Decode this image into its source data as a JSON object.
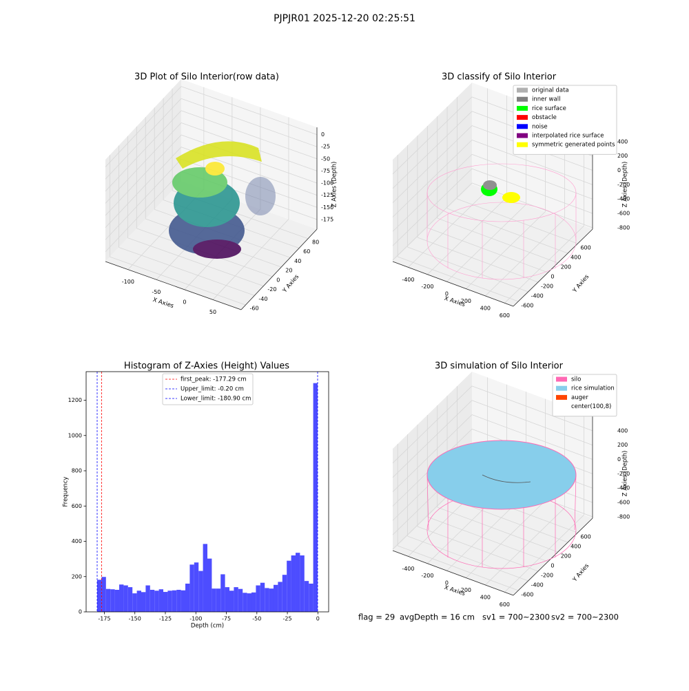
{
  "title": "PJPJR01 2025-12-20 02:25:51",
  "chart_data": [
    {
      "type": "scatter3d",
      "title": "3D Plot of Silo Interior(row data)",
      "xlabel": "X Axies",
      "ylabel": "Y Axies",
      "zlabel": "Z Axies (Depth)",
      "xlim": [
        -140,
        100
      ],
      "ylim": [
        -70,
        100
      ],
      "zlim": [
        -195,
        15
      ],
      "xticks": [
        -100,
        -50,
        0,
        50
      ],
      "yticks": [
        -60,
        -40,
        -20,
        0,
        20,
        40,
        60,
        80
      ],
      "zticks": [
        0,
        -25,
        -50,
        -75,
        -100,
        -125,
        -150,
        -175
      ],
      "grid": true
    },
    {
      "type": "scatter3d",
      "title": "3D classify of Silo Interior",
      "xlabel": "X Axies",
      "ylabel": "Y Axies",
      "zlabel": "Z Axies (Depth)",
      "xlim": [
        -560,
        690
      ],
      "ylim": [
        -700,
        900
      ],
      "zlim": [
        -820,
        600
      ],
      "xticks": [
        -400,
        -200,
        0,
        200,
        400,
        600
      ],
      "yticks": [
        -600,
        -400,
        -200,
        0,
        200,
        400,
        600
      ],
      "zticks": [
        400,
        200,
        0,
        -200,
        -400,
        -600,
        -800
      ],
      "grid": true,
      "legend": [
        {
          "name": "original data",
          "color": "#b0b0b0"
        },
        {
          "name": "inner wall",
          "color": "#808080"
        },
        {
          "name": "rice surface",
          "color": "#00ff00"
        },
        {
          "name": "obstacle",
          "color": "#ff0000"
        },
        {
          "name": "noise",
          "color": "#0000ff"
        },
        {
          "name": "interpolated rice surface",
          "color": "#800080"
        },
        {
          "name": "symmetric generated points",
          "color": "#ffff00"
        }
      ]
    },
    {
      "type": "histogram",
      "title": "Histogram of Z-Axies (Height) Values",
      "xlabel": "Depth (cm)",
      "ylabel": "Frequency",
      "color": "#4d4dff",
      "bins": [
        -180.9,
        -177.286,
        -173.672,
        -170.058,
        -166.444,
        -162.83,
        -159.216,
        -155.602,
        -151.988,
        -148.374,
        -144.76,
        -141.146,
        -137.532,
        -133.918,
        -130.304,
        -126.69,
        -123.076,
        -119.462,
        -115.848,
        -112.234,
        -108.62,
        -105.006,
        -101.392,
        -97.778,
        -94.164,
        -90.55,
        -86.936,
        -83.322,
        -79.708,
        -76.094,
        -72.48,
        -68.866,
        -65.252,
        -61.638,
        -58.024,
        -54.41,
        -50.796,
        -47.182,
        -43.568,
        -39.954,
        -36.34,
        -32.726,
        -29.112,
        -25.498,
        -21.884,
        -18.27,
        -14.656,
        -11.042,
        -7.428,
        -3.814,
        -0.2
      ],
      "counts": [
        182,
        198,
        130,
        128,
        125,
        155,
        150,
        140,
        105,
        120,
        112,
        150,
        125,
        120,
        128,
        113,
        120,
        122,
        125,
        122,
        160,
        268,
        280,
        232,
        385,
        302,
        132,
        132,
        213,
        140,
        120,
        140,
        130,
        108,
        105,
        110,
        150,
        165,
        135,
        132,
        153,
        170,
        210,
        290,
        320,
        335,
        320,
        175,
        160,
        1297
      ],
      "xlim": [
        -189.94,
        8.84
      ],
      "ylim": [
        0,
        1362
      ],
      "xticks": [
        -175,
        -150,
        -125,
        -100,
        -75,
        -50,
        -25,
        0
      ],
      "yticks": [
        0,
        200,
        400,
        600,
        800,
        1000,
        1200
      ],
      "lines": [
        {
          "label": "first_peak: -177.29 cm",
          "value": -177.29,
          "color": "#ff0000"
        },
        {
          "label": "Upper_limit: -0.20 cm",
          "value": -0.2,
          "color": "#0000ff"
        },
        {
          "label": "Lower_limit: -180.90 cm",
          "value": -180.9,
          "color": "#0000ff"
        }
      ]
    },
    {
      "type": "scatter3d",
      "title": "3D simulation of Silo Interior",
      "xlabel": "X Axies",
      "ylabel": "Y Axies",
      "zlabel": "Z Axies (Depth)",
      "xlim": [
        -560,
        690
      ],
      "ylim": [
        -700,
        900
      ],
      "zlim": [
        -820,
        600
      ],
      "xticks": [
        -400,
        -200,
        0,
        200,
        400,
        600
      ],
      "yticks": [
        -600,
        -400,
        -200,
        0,
        200,
        400,
        600
      ],
      "zticks": [
        400,
        200,
        0,
        -200,
        -400,
        -600,
        -800
      ],
      "grid": true,
      "legend": [
        {
          "name": "silo",
          "color": "#ff69b4"
        },
        {
          "name": "rice simulation",
          "color": "#87ceeb"
        },
        {
          "name": "auger",
          "color": "#ff4500"
        },
        {
          "name": "center(100,8)",
          "color": "#ffffff"
        }
      ]
    }
  ],
  "footer": [
    "flag = 29",
    "avgDepth = 16 cm",
    "sv1 = 700~2300",
    "sv2 = 700~2300"
  ]
}
